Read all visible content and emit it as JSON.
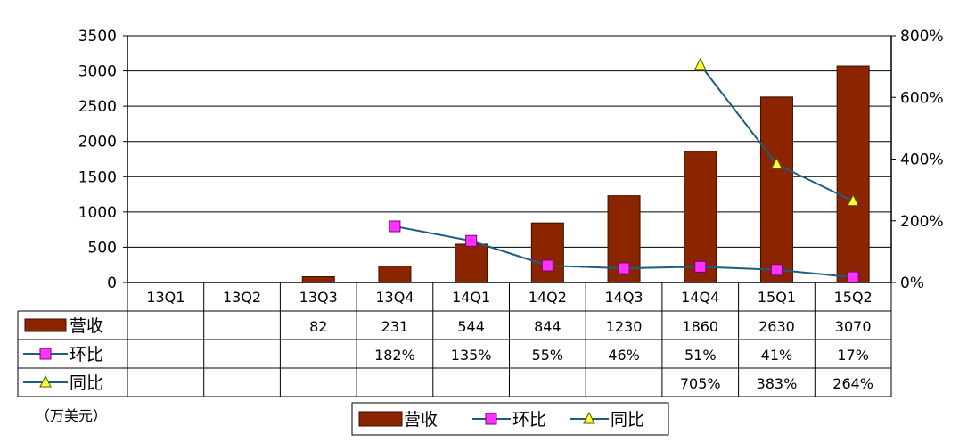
{
  "chart_data": {
    "type": "bar",
    "categories": [
      "13Q1",
      "13Q2",
      "13Q3",
      "13Q4",
      "14Q1",
      "14Q2",
      "14Q3",
      "14Q4",
      "15Q1",
      "15Q2"
    ],
    "series": [
      {
        "name": "营收",
        "type": "bar",
        "axis": "left",
        "values": [
          null,
          null,
          82,
          231,
          544,
          844,
          1230,
          1860,
          2630,
          3070
        ],
        "labels": [
          "",
          "",
          "82",
          "231",
          "544",
          "844",
          "1230",
          "1860",
          "2630",
          "3070"
        ]
      },
      {
        "name": "环比",
        "type": "line",
        "axis": "right",
        "marker": "square",
        "values": [
          null,
          null,
          null,
          182,
          135,
          55,
          46,
          51,
          41,
          17
        ],
        "labels": [
          "",
          "",
          "",
          "182%",
          "135%",
          "55%",
          "46%",
          "51%",
          "41%",
          "17%"
        ]
      },
      {
        "name": "同比",
        "type": "line",
        "axis": "right",
        "marker": "triangle",
        "values": [
          null,
          null,
          null,
          null,
          null,
          null,
          null,
          705,
          383,
          264
        ],
        "labels": [
          "",
          "",
          "",
          "",
          "",
          "",
          "",
          "705%",
          "383%",
          "264%"
        ]
      }
    ],
    "y_left": {
      "min": 0,
      "max": 3500,
      "ticks": [
        "0",
        "500",
        "1000",
        "1500",
        "2000",
        "2500",
        "3000",
        "3500"
      ]
    },
    "y_right": {
      "min": 0,
      "max": 800,
      "ticks": [
        "0%",
        "200%",
        "400%",
        "600%",
        "800%"
      ]
    },
    "unit_note": "（万美元）",
    "legend_position": "bottom",
    "grid": true,
    "colors": {
      "bar": "#8B2500",
      "bar_edge": "#3a0e00",
      "qoq_line": "#1f5d80",
      "qoq_marker": "#ff33ff",
      "yoy_line": "#1f5d80",
      "yoy_marker": "#ffff33"
    }
  }
}
